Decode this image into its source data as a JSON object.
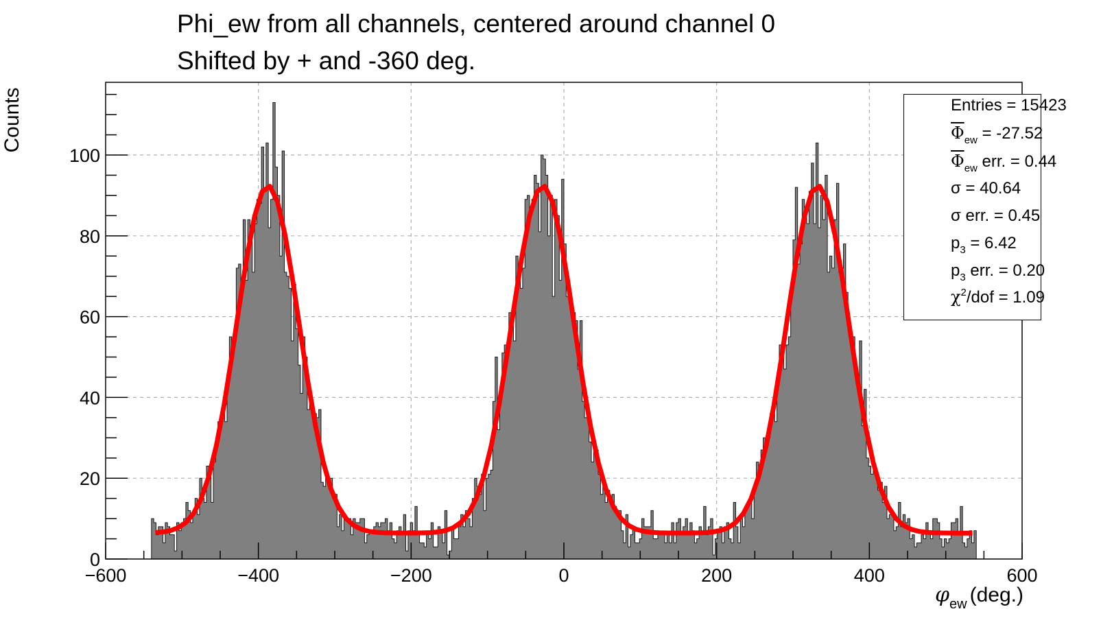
{
  "title": {
    "line1": "Phi_ew from all channels, centered around channel 0",
    "line2": "Shifted by + and -360 deg."
  },
  "axes": {
    "ylabel": "Counts",
    "xlabel_sym": "φ",
    "xlabel_sub": "ew",
    "xlabel_rest": "(deg.)"
  },
  "stats": {
    "entries_label": "Entries = 15423",
    "mean_sym": "Φ",
    "mean_sub": "ew",
    "mean_val": " = -27.52",
    "mean_err_sym": "Φ",
    "mean_err_sub": "ew",
    "mean_err_val": " err. = 0.44",
    "sigma_label": "σ = 40.64",
    "sigma_err_label": "σ err. = 0.45",
    "p3_sym": "p",
    "p3_sub": "3",
    "p3_val": " = 6.42",
    "p3_err_sym": "p",
    "p3_err_sub": "3",
    "p3_err_val": " err. = 0.20",
    "chi_sym": "χ",
    "chi_sup": "2",
    "chi_val": "/dof = 1.09"
  },
  "colors": {
    "histogram_fill": "#808080",
    "histogram_line": "#1a1a1a",
    "fit_line": "#ff0000",
    "grid": "#b0b0b0"
  },
  "chart_data": {
    "type": "histogram",
    "xlim": [
      -600,
      600
    ],
    "ylim": [
      0,
      118
    ],
    "x_ticks": [
      "−600",
      "−400",
      "−200",
      "0",
      "200",
      "400",
      "600"
    ],
    "y_ticks": [
      "0",
      "20",
      "40",
      "60",
      "80",
      "100"
    ],
    "grid": true,
    "legend": "top-right stats box",
    "histogram": {
      "range": [
        -540,
        540
      ],
      "bin_width": 3,
      "peaks": [
        -387.52,
        -27.52,
        332.48
      ],
      "peak_counts": [
        92,
        92,
        92
      ],
      "baseline": 6.4,
      "max_count": 113
    },
    "fit": {
      "function": "sum of three gaussians plus constant",
      "means": [
        -387.52,
        -27.52,
        332.48
      ],
      "sigma": 40.64,
      "constant": 6.42,
      "amplitude": 86,
      "range": [
        -535,
        535
      ]
    }
  }
}
